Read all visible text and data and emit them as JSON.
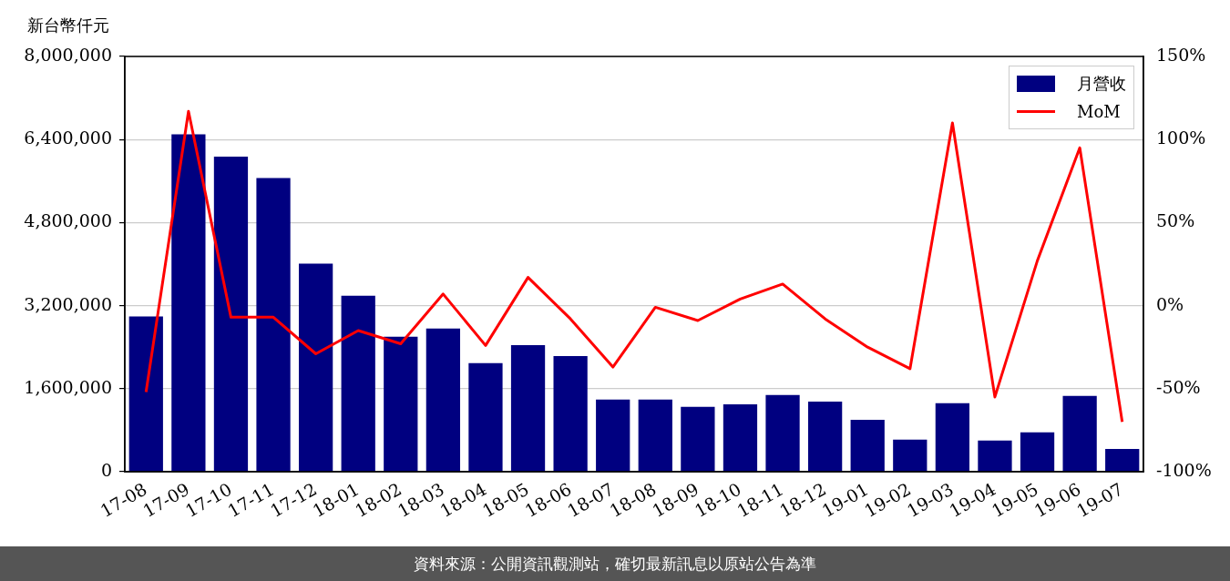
{
  "chart_data": {
    "type": "bar",
    "ylabel": "新台幣仟元",
    "categories": [
      "17-08",
      "17-09",
      "17-10",
      "17-11",
      "17-12",
      "18-01",
      "18-02",
      "18-03",
      "18-04",
      "18-05",
      "18-06",
      "18-07",
      "18-08",
      "18-09",
      "18-10",
      "18-11",
      "18-12",
      "19-01",
      "19-02",
      "19-03",
      "19-04",
      "19-05",
      "19-06",
      "19-07"
    ],
    "series": [
      {
        "name": "月營收",
        "color": "#000080",
        "values": [
          2990000,
          6500000,
          6070000,
          5660000,
          4010000,
          3390000,
          2600000,
          2760000,
          2090000,
          2440000,
          2230000,
          1390000,
          1390000,
          1250000,
          1300000,
          1480000,
          1350000,
          1000000,
          620000,
          1320000,
          600000,
          760000,
          1460000,
          440000
        ]
      },
      {
        "name": "MoM",
        "type": "line",
        "axis": "y2",
        "color": "#ff0000",
        "values": [
          -52,
          117,
          -7,
          -7,
          -29,
          -15,
          -23,
          7,
          -24,
          17,
          -8,
          -37,
          -1,
          -9,
          4,
          13,
          -8,
          -25,
          -38,
          110,
          -55,
          27,
          95,
          -70
        ]
      }
    ],
    "ylim": [
      0,
      8000000
    ],
    "yticks": [
      {
        "value": 0,
        "label": "0"
      },
      {
        "value": 1600000,
        "label": "1,600,000"
      },
      {
        "value": 3200000,
        "label": "3,200,000"
      },
      {
        "value": 4800000,
        "label": "4,800,000"
      },
      {
        "value": 6400000,
        "label": "6,400,000"
      },
      {
        "value": 8000000,
        "label": "8,000,000"
      }
    ],
    "y2lim": [
      -100,
      150
    ],
    "y2ticks": [
      {
        "value": -100,
        "label": "-100%"
      },
      {
        "value": -50,
        "label": "-50%"
      },
      {
        "value": 0,
        "label": "0%"
      },
      {
        "value": 50,
        "label": "50%"
      },
      {
        "value": 100,
        "label": "100%"
      },
      {
        "value": 150,
        "label": "150%"
      }
    ],
    "grid": "y",
    "legend": "top right",
    "marker": "none",
    "line_style": "solid",
    "annotations": [
      "資料來源：公開資訊觀測站，確切最新訊息以原站公告為準"
    ]
  }
}
